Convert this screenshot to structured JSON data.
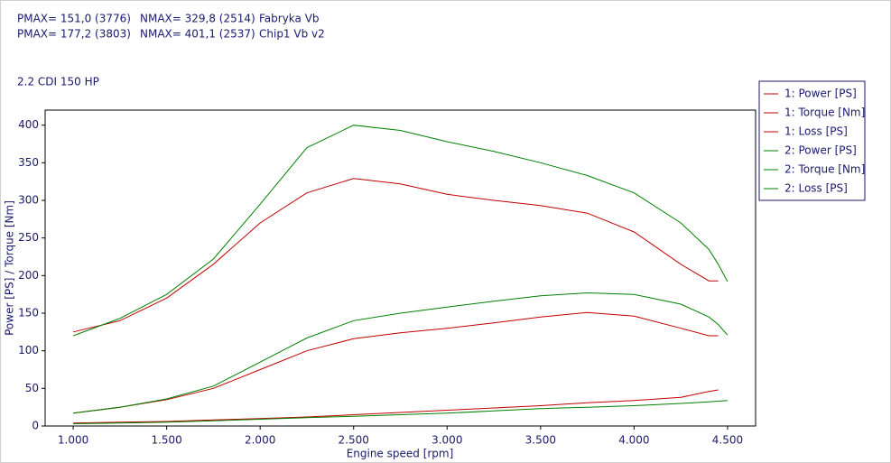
{
  "chart_data": {
    "type": "line",
    "header_rows": [
      [
        "PMAX= 151,0 (3776)",
        "NMAX= 329,8 (2514)",
        "Fabryka Vb"
      ],
      [
        "PMAX= 177,2 (3803)",
        "NMAX= 401,1 (2537)",
        "Chip1 Vb v2"
      ]
    ],
    "subtitle": "2.2 CDI 150 HP",
    "x_label": "Engine speed [rpm]",
    "y_label": "Power [PS] / Torque [Nm]",
    "xlim": [
      850,
      4650
    ],
    "ylim": [
      0,
      420
    ],
    "xticks": [
      {
        "value": 1000,
        "label": "1.000"
      },
      {
        "value": 1500,
        "label": "1.500"
      },
      {
        "value": 2000,
        "label": "2.000"
      },
      {
        "value": 2500,
        "label": "2.500"
      },
      {
        "value": 3000,
        "label": "3.000"
      },
      {
        "value": 3500,
        "label": "3.500"
      },
      {
        "value": 4000,
        "label": "4.000"
      },
      {
        "value": 4500,
        "label": "4.500"
      }
    ],
    "yticks": [
      0,
      50,
      100,
      150,
      200,
      250,
      300,
      350,
      400
    ],
    "legend_position": "right",
    "x": [
      1000,
      1250,
      1500,
      1750,
      2000,
      2250,
      2500,
      2750,
      3000,
      3250,
      3500,
      3750,
      4000,
      4250,
      4400,
      4450,
      4500
    ],
    "series": [
      {
        "name": "1: Power [PS]",
        "color": "#c00000",
        "values": [
          17,
          25,
          35,
          50,
          75,
          100,
          116,
          124,
          130,
          137,
          145,
          151,
          146,
          130,
          120,
          120,
          null
        ]
      },
      {
        "name": "1: Torque [Nm]",
        "color": "#c00000",
        "values": [
          125,
          140,
          170,
          215,
          270,
          310,
          329,
          322,
          308,
          300,
          293,
          283,
          258,
          215,
          193,
          193,
          null
        ]
      },
      {
        "name": "1: Loss [PS]",
        "color": "#c00000",
        "values": [
          4,
          5,
          6,
          8,
          10,
          12,
          15,
          18,
          21,
          24,
          27,
          31,
          34,
          38,
          46,
          48,
          null
        ]
      },
      {
        "name": "2: Power [PS]",
        "color": "#008000",
        "values": [
          17,
          25,
          36,
          53,
          85,
          117,
          140,
          150,
          158,
          166,
          173,
          177,
          175,
          162,
          145,
          135,
          121
        ]
      },
      {
        "name": "2: Torque [Nm]",
        "color": "#008000",
        "values": [
          120,
          143,
          175,
          222,
          295,
          370,
          400,
          393,
          378,
          365,
          350,
          333,
          310,
          270,
          235,
          215,
          192
        ]
      },
      {
        "name": "2: Loss [PS]",
        "color": "#008000",
        "values": [
          3,
          4,
          5,
          7,
          9,
          11,
          13,
          15,
          17,
          20,
          23,
          25,
          27,
          30,
          32,
          33,
          34
        ]
      }
    ]
  }
}
